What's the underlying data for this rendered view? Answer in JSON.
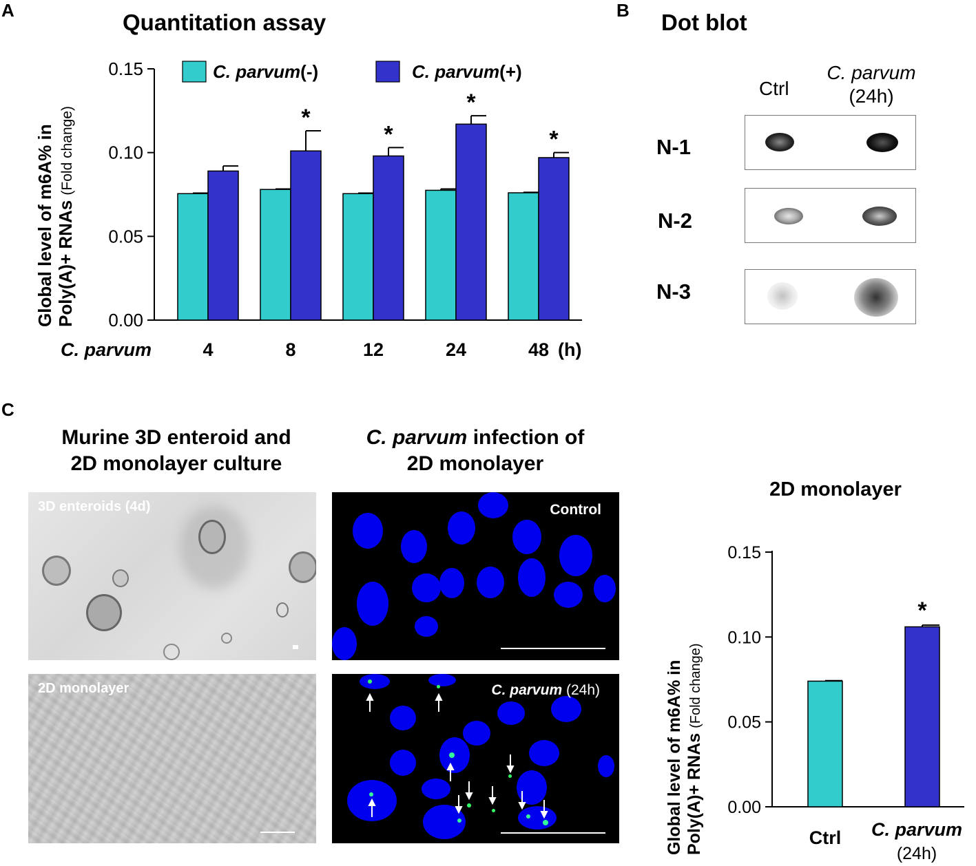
{
  "panels": {
    "a": "A",
    "b": "B",
    "c": "C"
  },
  "panel_a": {
    "title": "Quantitation assay",
    "ylabel_line1": "Global level of m6A% in",
    "ylabel_line2": "Poly(A)+ RNAs",
    "ylabel_sub": "(Fold change)",
    "legend": {
      "neg_name": "C. parvum",
      "neg_suffix": "(-)",
      "pos_name": "C. parvum",
      "pos_suffix": "(+)"
    },
    "x_row_label": "C. parvum",
    "x_unit": "(h)",
    "significance_mark": "*"
  },
  "panel_b": {
    "title": "Dot blot",
    "col_ctrl": "Ctrl",
    "col_cp_name": "C. parvum",
    "col_cp_sub": "(24h)",
    "rows": [
      "N-1",
      "N-2",
      "N-3"
    ],
    "dot_intensity": {
      "ctrl": [
        0.85,
        0.75,
        0.25
      ],
      "cp": [
        0.95,
        0.9,
        0.7
      ]
    }
  },
  "panel_c": {
    "left_title_line1": "Murine 3D enteroid and",
    "left_title_line2": "2D monolayer culture",
    "mid_title_name": "C. parvum",
    "mid_title_rest": "infection of",
    "mid_title_line2": "2D monolayer",
    "img_enteroids_label": "3D enteroids (4d)",
    "img_monolayer_label": "2D monolayer",
    "img_control_label": "Control",
    "img_infected_name": "C. parvum",
    "img_infected_time": "(24h)"
  },
  "chart_data": [
    {
      "type": "bar",
      "title": "Quantitation assay",
      "ylabel": "Global level of m6A% in Poly(A)+ RNAs (Fold change)",
      "xlabel": "C. parvum (h)",
      "categories": [
        "4",
        "8",
        "12",
        "24",
        "48"
      ],
      "ylim": [
        0,
        0.15
      ],
      "yticks": [
        "0.00",
        "0.05",
        "0.10",
        "0.15"
      ],
      "series": [
        {
          "name": "C. parvum(-)",
          "color": "#33cccc",
          "values": [
            0.0755,
            0.078,
            0.0755,
            0.0775,
            0.076
          ],
          "errors": [
            0.0003,
            0.0003,
            0.0003,
            0.0008,
            0.0003
          ]
        },
        {
          "name": "C. parvum(+)",
          "color": "#3333cc",
          "values": [
            0.089,
            0.101,
            0.098,
            0.117,
            0.097
          ],
          "errors": [
            0.003,
            0.012,
            0.005,
            0.005,
            0.003
          ]
        }
      ],
      "significant": [
        false,
        true,
        true,
        true,
        true
      ],
      "grid": false,
      "legend_position": "top"
    },
    {
      "type": "bar",
      "title": "2D monolayer",
      "ylabel": "Global level of m6A% in Poly(A)+ RNAs (Fold change)",
      "categories": [
        "Ctrl",
        "C. parvum (24h)"
      ],
      "ylim": [
        0,
        0.15
      ],
      "yticks": [
        "0.00",
        "0.05",
        "0.10",
        "0.15"
      ],
      "values": [
        0.074,
        0.106
      ],
      "errors": [
        0.0003,
        0.001
      ],
      "colors": [
        "#33cccc",
        "#3333cc"
      ],
      "significant": [
        false,
        true
      ],
      "grid": false
    }
  ]
}
